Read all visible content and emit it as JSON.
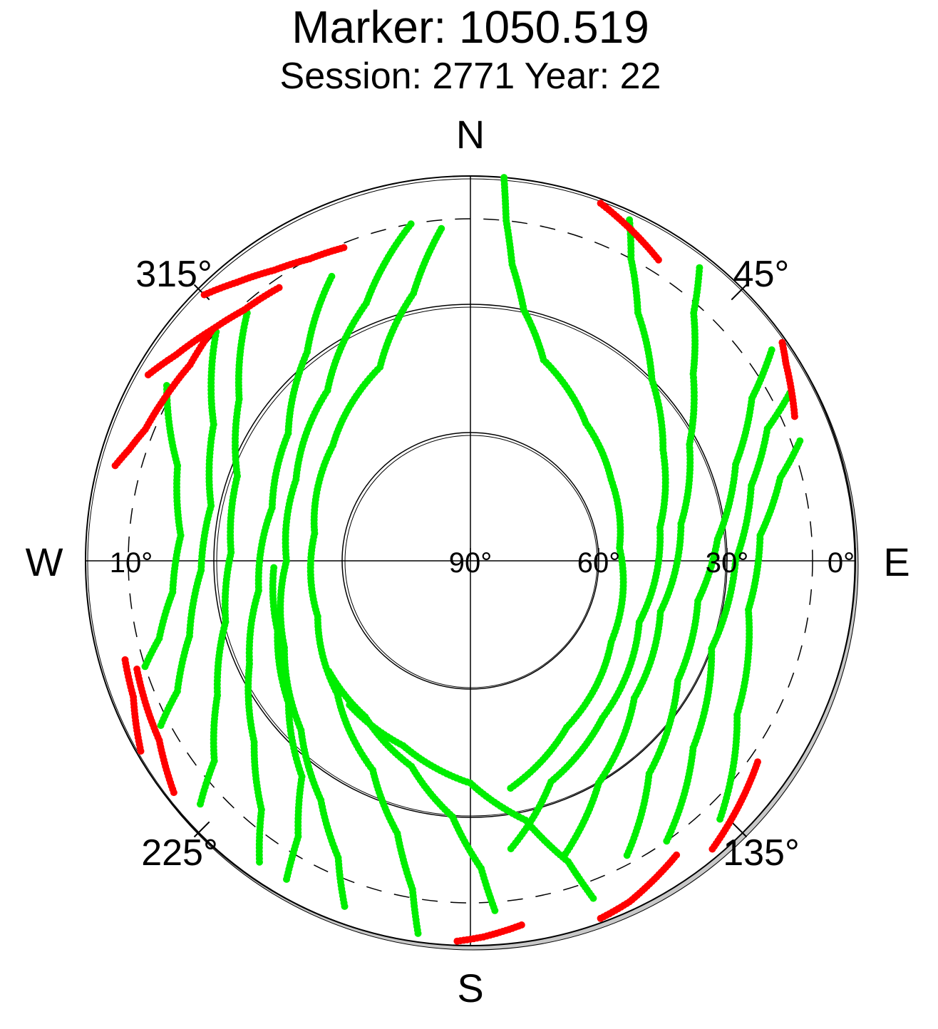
{
  "chart_data": {
    "type": "scatter",
    "projection": "polar-skyplot",
    "title": "Marker: 1050.519",
    "subtitle": "Session: 2771 Year: 22",
    "compass": {
      "north": "N",
      "east": "E",
      "south": "S",
      "west": "W"
    },
    "azimuth_ticks": [
      {
        "az": 45,
        "label": "45°"
      },
      {
        "az": 135,
        "label": "135°"
      },
      {
        "az": 225,
        "label": "225°"
      },
      {
        "az": 315,
        "label": "315°"
      }
    ],
    "elevation_ticks_east": [
      {
        "el": 90,
        "label": "90°"
      },
      {
        "el": 60,
        "label": "60°"
      },
      {
        "el": 30,
        "label": "30°"
      },
      {
        "el": 0,
        "label": "0°"
      }
    ],
    "elevation_ticks_west": [
      {
        "el": 10,
        "label": "10°"
      }
    ],
    "radial_axis": "elevation",
    "elevation_range": [
      0,
      90
    ],
    "elevation_circles": [
      0,
      30,
      60
    ],
    "cutoff_elevation_dashed": 10,
    "grid": true,
    "colors": {
      "accepted": "#00ee00",
      "rejected": "#ff0000",
      "axis": "#000000"
    },
    "legend": "none",
    "series": [
      {
        "status": "accepted",
        "color": "#00ee00",
        "tracks": [
          {
            "az": [
              5,
              6,
              8,
              12,
              20,
              40,
              60,
              85,
              120,
              150,
              170
            ],
            "el": [
              0,
              10,
              20,
              30,
              40,
              48,
              52,
              55,
              52,
              45,
              36
            ]
          },
          {
            "az": [
              25,
              28,
              34,
              45,
              60,
              80,
              110,
              140,
              160,
              172
            ],
            "el": [
              2,
              10,
              20,
              30,
              38,
              45,
              48,
              42,
              35,
              22
            ]
          },
          {
            "az": [
              38,
              42,
              50,
              62,
              80,
              105,
              130,
              150,
              162
            ],
            "el": [
              3,
              12,
              22,
              32,
              40,
              44,
              40,
              30,
              18
            ]
          },
          {
            "az": [
              55,
              60,
              70,
              85,
              100,
              120,
              140,
              152
            ],
            "el": [
              4,
              14,
              24,
              32,
              36,
              34,
              25,
              12
            ]
          },
          {
            "az": [
              62,
              66,
              75,
              90,
              110,
              130,
              145
            ],
            "el": [
              5,
              14,
              22,
              28,
              30,
              22,
              10
            ]
          },
          {
            "az": [
              70,
              75,
              85,
              100,
              120,
              136
            ],
            "el": [
              8,
              15,
              22,
              24,
              18,
              6
            ]
          },
          {
            "az": [
              188,
              190,
              195,
              205,
              225,
              250,
              280,
              310,
              335,
              348,
              355
            ],
            "el": [
              2,
              12,
              24,
              36,
              46,
              52,
              53,
              48,
              40,
              26,
              12
            ]
          },
          {
            "az": [
              200,
              204,
              212,
              225,
              245,
              270,
              295,
              320,
              338,
              350
            ],
            "el": [
              4,
              14,
              24,
              34,
              42,
              47,
              45,
              38,
              25,
              10
            ]
          },
          {
            "az": [
              215,
              220,
              230,
              245,
              262,
              285,
              305,
              322,
              334
            ],
            "el": [
              4,
              14,
              24,
              33,
              40,
              42,
              38,
              28,
              16
            ]
          },
          {
            "az": [
              228,
              232,
              242,
              256,
              272,
              290,
              305,
              318
            ],
            "el": [
              5,
              14,
              23,
              31,
              34,
              32,
              24,
              12
            ]
          },
          {
            "az": [
              242,
              246,
              255,
              268,
              282,
              298,
              312
            ],
            "el": [
              8,
              15,
              22,
              27,
              28,
              22,
              10
            ]
          },
          {
            "az": [
              252,
              256,
              264,
              275,
              288,
              300
            ],
            "el": [
              10,
              15,
              20,
              22,
              18,
              8
            ]
          },
          {
            "az": [
              160,
              162,
              168,
              180,
              200,
              220
            ],
            "el": [
              6,
              16,
              28,
              38,
              44,
              46
            ]
          },
          {
            "az": [
              176,
              178,
              184,
              196,
              214,
              232
            ],
            "el": [
              8,
              18,
              30,
              40,
              46,
              48
            ]
          },
          {
            "az": [
              210,
              212,
              218,
              232,
              250,
              268
            ],
            "el": [
              4,
              14,
              26,
              36,
              42,
              44
            ]
          }
        ]
      },
      {
        "status": "rejected",
        "color": "#ff0000",
        "tracks": [
          {
            "az": [
              285,
              288,
              292,
              298,
              305,
              312
            ],
            "el": [
              4,
              6,
              8,
              9,
              10,
              9
            ]
          },
          {
            "az": [
              300,
              305,
              312,
              318,
              325
            ],
            "el": [
              3,
              6,
              9,
              11,
              12
            ]
          },
          {
            "az": [
              315,
              320,
              326,
              332,
              338
            ],
            "el": [
              2,
              5,
              8,
              10,
              11
            ]
          },
          {
            "az": [
              232,
              236,
              240,
              246,
              252
            ],
            "el": [
              2,
              4,
              6,
              7,
              8
            ]
          },
          {
            "az": [
              240,
              244,
              248,
              254
            ],
            "el": [
              1,
              3,
              5,
              6
            ]
          },
          {
            "az": [
              20,
              24,
              28,
              32
            ],
            "el": [
              1,
              3,
              5,
              7
            ]
          },
          {
            "az": [
              55,
              58,
              62,
              66
            ],
            "el": [
              1,
              3,
              5,
              7
            ]
          },
          {
            "az": [
              125,
              130,
              135,
              140
            ],
            "el": [
              8,
              6,
              4,
              2
            ]
          },
          {
            "az": [
              145,
              150,
              155,
              160
            ],
            "el": [
              6,
              4,
              2,
              1
            ]
          },
          {
            "az": [
              172,
              175,
              178,
              182
            ],
            "el": [
              4,
              3,
              2,
              1
            ]
          }
        ]
      }
    ]
  }
}
